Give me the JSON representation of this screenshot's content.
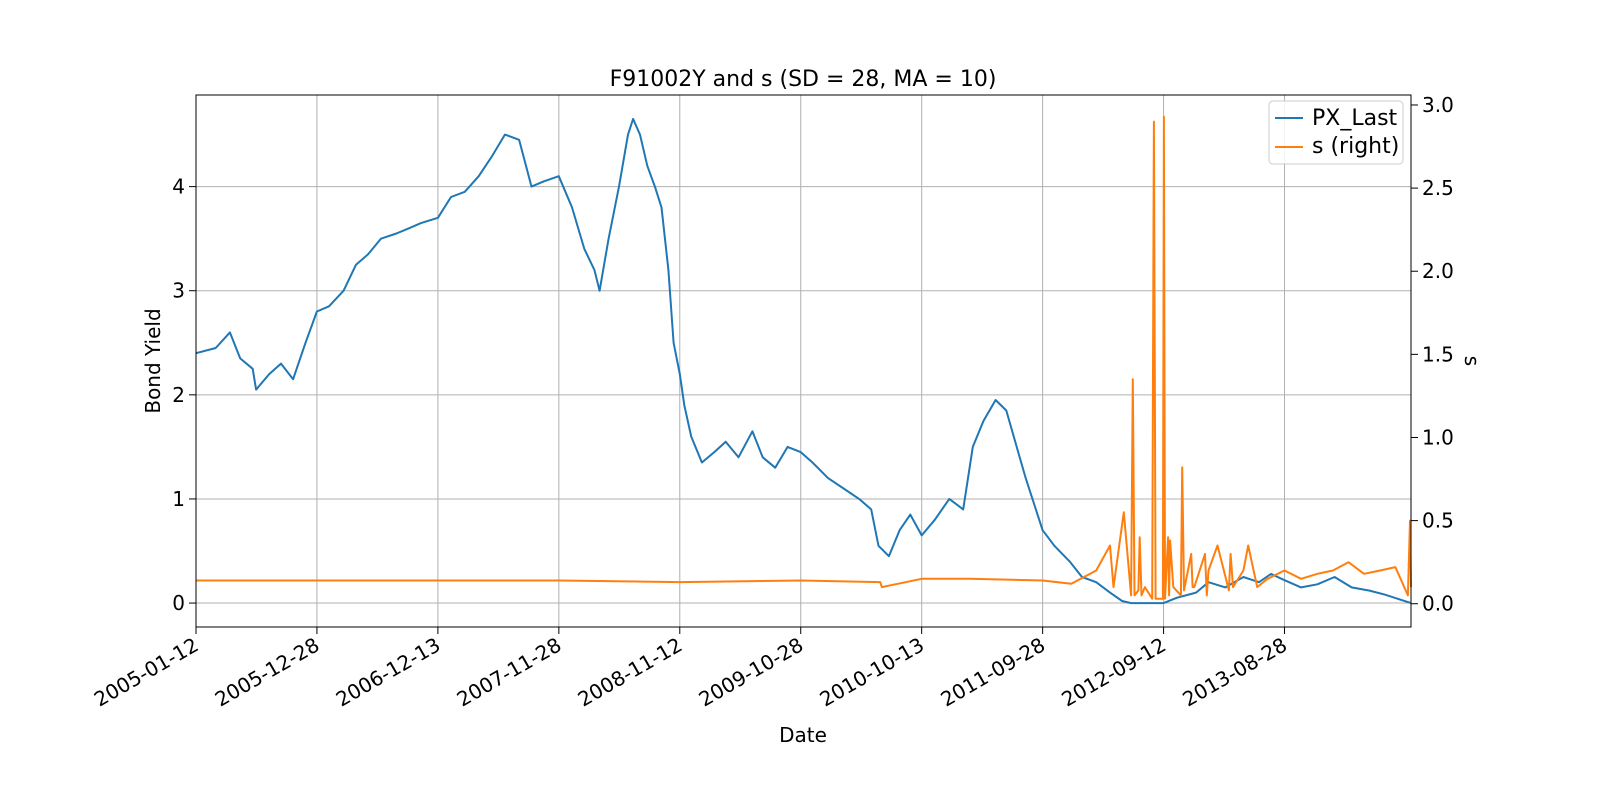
{
  "chart_data": {
    "type": "line",
    "title": "F91002Y and s (SD = 28, MA = 10)",
    "xlabel": "Date",
    "ylabel": "Bond Yield",
    "y2label": "s",
    "x_ticks": [
      "2005-01-12",
      "2005-12-28",
      "2006-12-13",
      "2007-11-28",
      "2008-11-12",
      "2009-10-28",
      "2010-10-13",
      "2011-09-28",
      "2012-09-12",
      "2013-08-28"
    ],
    "xlim": [
      "2005-01-12",
      "2014-08-29"
    ],
    "ylim": [
      -0.23,
      4.88
    ],
    "y_ticks": [
      0,
      1,
      2,
      3,
      4
    ],
    "y2lim": [
      -0.14,
      3.06
    ],
    "y2_ticks": [
      "0.0",
      "0.5",
      "1.0",
      "1.5",
      "2.0",
      "2.5",
      "3.0"
    ],
    "grid": true,
    "legend_position": "top-right",
    "series": [
      {
        "name": "PX_Last",
        "axis": "left",
        "color": "#1f77b4",
        "x": [
          "2005-01-12",
          "2005-03-10",
          "2005-04-20",
          "2005-05-20",
          "2005-06-25",
          "2005-07-05",
          "2005-08-12",
          "2005-09-15",
          "2005-10-20",
          "2005-11-25",
          "2005-12-28",
          "2006-02-01",
          "2006-03-15",
          "2006-04-20",
          "2006-05-25",
          "2006-07-01",
          "2006-08-15",
          "2006-09-20",
          "2006-10-25",
          "2006-12-13",
          "2007-01-20",
          "2007-03-01",
          "2007-04-10",
          "2007-05-20",
          "2007-06-25",
          "2007-08-05",
          "2007-09-10",
          "2007-10-15",
          "2007-11-28",
          "2008-01-05",
          "2008-02-10",
          "2008-03-10",
          "2008-03-25",
          "2008-04-20",
          "2008-05-20",
          "2008-06-15",
          "2008-06-30",
          "2008-07-20",
          "2008-08-10",
          "2008-09-01",
          "2008-09-20",
          "2008-10-10",
          "2008-10-25",
          "2008-11-12",
          "2008-11-25",
          "2008-12-15",
          "2009-01-15",
          "2009-02-20",
          "2009-03-25",
          "2009-05-01",
          "2009-06-10",
          "2009-07-10",
          "2009-08-15",
          "2009-09-20",
          "2009-10-28",
          "2009-12-01",
          "2010-01-15",
          "2010-03-01",
          "2010-04-15",
          "2010-05-20",
          "2010-06-10",
          "2010-07-10",
          "2010-08-10",
          "2010-09-10",
          "2010-10-13",
          "2010-11-20",
          "2011-01-01",
          "2011-02-10",
          "2011-03-10",
          "2011-04-10",
          "2011-05-15",
          "2011-06-15",
          "2011-07-15",
          "2011-08-10",
          "2011-09-28",
          "2011-11-01",
          "2011-12-15",
          "2012-01-20",
          "2012-03-01",
          "2012-04-10",
          "2012-05-15",
          "2012-06-10",
          "2012-09-12",
          "2012-10-20",
          "2012-12-15",
          "2013-01-20",
          "2013-03-10",
          "2013-05-01",
          "2013-06-15",
          "2013-07-20",
          "2013-08-28",
          "2013-10-15",
          "2013-12-01",
          "2014-01-20",
          "2014-03-10",
          "2014-05-01",
          "2014-06-15",
          "2014-08-29"
        ],
        "values": [
          2.4,
          2.45,
          2.6,
          2.35,
          2.25,
          2.05,
          2.2,
          2.3,
          2.15,
          2.5,
          2.8,
          2.85,
          3.0,
          3.25,
          3.35,
          3.5,
          3.55,
          3.6,
          3.65,
          3.7,
          3.9,
          3.95,
          4.1,
          4.3,
          4.5,
          4.45,
          4.0,
          4.05,
          4.1,
          3.8,
          3.4,
          3.2,
          3.0,
          3.5,
          4.0,
          4.5,
          4.65,
          4.5,
          4.2,
          4.0,
          3.8,
          3.2,
          2.5,
          2.2,
          1.9,
          1.6,
          1.35,
          1.45,
          1.55,
          1.4,
          1.65,
          1.4,
          1.3,
          1.5,
          1.45,
          1.35,
          1.2,
          1.1,
          1.0,
          0.9,
          0.55,
          0.45,
          0.7,
          0.85,
          0.65,
          0.8,
          1.0,
          0.9,
          1.5,
          1.75,
          1.95,
          1.85,
          1.5,
          1.2,
          0.7,
          0.55,
          0.4,
          0.25,
          0.2,
          0.1,
          0.02,
          0.0,
          0.0,
          0.05,
          0.1,
          0.2,
          0.15,
          0.25,
          0.2,
          0.28,
          0.22,
          0.15,
          0.18,
          0.25,
          0.15,
          0.12,
          0.08,
          0.0
        ]
      },
      {
        "name": "s (right)",
        "axis": "right",
        "color": "#ff7f0e",
        "x": [
          "2005-01-12",
          "2005-12-28",
          "2006-12-13",
          "2007-11-28",
          "2008-11-12",
          "2009-10-28",
          "2010-06-15",
          "2010-06-20",
          "2010-10-13",
          "2011-03-01",
          "2011-09-28",
          "2011-12-20",
          "2012-03-01",
          "2012-04-10",
          "2012-04-20",
          "2012-05-20",
          "2012-06-10",
          "2012-06-15",
          "2012-06-20",
          "2012-07-01",
          "2012-07-05",
          "2012-07-10",
          "2012-07-20",
          "2012-08-10",
          "2012-08-15",
          "2012-08-20",
          "2012-09-10",
          "2012-09-13",
          "2012-09-16",
          "2012-09-25",
          "2012-09-28",
          "2012-10-01",
          "2012-10-10",
          "2012-11-01",
          "2012-11-05",
          "2012-11-10",
          "2012-12-01",
          "2012-12-05",
          "2012-12-10",
          "2013-01-10",
          "2013-01-15",
          "2013-01-20",
          "2013-02-15",
          "2013-03-20",
          "2013-03-25",
          "2013-04-01",
          "2013-05-01",
          "2013-05-15",
          "2013-06-10",
          "2013-07-10",
          "2013-08-28",
          "2013-10-15",
          "2013-12-01",
          "2014-01-15",
          "2014-03-01",
          "2014-04-15",
          "2014-06-01",
          "2014-07-15",
          "2014-08-20",
          "2014-08-26",
          "2014-08-29"
        ],
        "values": [
          0.14,
          0.14,
          0.14,
          0.14,
          0.13,
          0.14,
          0.13,
          0.1,
          0.15,
          0.15,
          0.14,
          0.12,
          0.2,
          0.35,
          0.1,
          0.55,
          0.05,
          1.35,
          0.05,
          0.08,
          0.4,
          0.05,
          0.1,
          0.03,
          2.9,
          0.03,
          0.03,
          2.93,
          0.03,
          0.4,
          0.05,
          0.38,
          0.1,
          0.05,
          0.82,
          0.08,
          0.3,
          0.1,
          0.1,
          0.3,
          0.05,
          0.2,
          0.35,
          0.08,
          0.3,
          0.1,
          0.2,
          0.35,
          0.1,
          0.15,
          0.2,
          0.15,
          0.18,
          0.2,
          0.25,
          0.18,
          0.2,
          0.22,
          0.05,
          0.5,
          0.1
        ]
      }
    ]
  }
}
